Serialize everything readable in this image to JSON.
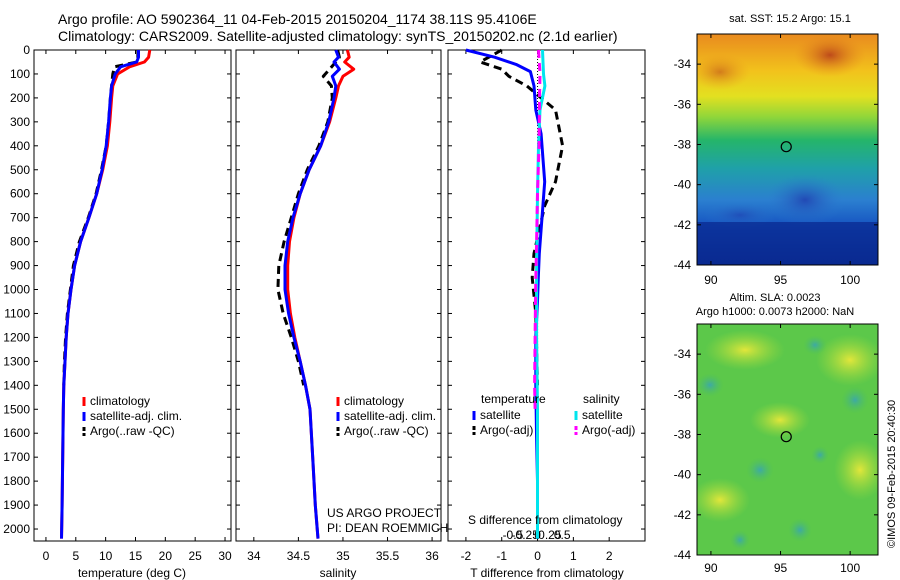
{
  "header": {
    "line1": "Argo profile: AO 5902364_11 04-Feb-2015 20150204_1174 38.11S 95.4106E",
    "line2": "Climatology: CARS2009. Satellite-adjusted climatology: synTS_20150202.nc (2.1d earlier)"
  },
  "colors": {
    "climatology": "#ff0000",
    "satellite": "#0000ff",
    "argo": "#000000",
    "satellite_s": "#00e5ee",
    "argo_s": "#ff00ff"
  },
  "chart_data": [
    {
      "type": "line",
      "name": "temperature-profile",
      "xlabel": "temperature (deg C)",
      "ylabel": "",
      "xlim": [
        -2,
        31
      ],
      "ylim": [
        2050,
        0
      ],
      "xticks": [
        "0",
        "5",
        "10",
        "15",
        "20",
        "25",
        "30"
      ],
      "yticks": [
        "0",
        "100",
        "200",
        "300",
        "400",
        "500",
        "600",
        "700",
        "800",
        "900",
        "1000",
        "1100",
        "1200",
        "1300",
        "1400",
        "1500",
        "1600",
        "1700",
        "1800",
        "1900",
        "2000"
      ],
      "legend": [
        "climatology",
        "satellite-adj. clim.",
        "Argo(..raw -QC)"
      ],
      "series": [
        {
          "name": "climatology",
          "style": "solid",
          "x": [
            17.4,
            17.2,
            16.5,
            14.0,
            12.0,
            11.2,
            11.0,
            10.7,
            10.3,
            9.5,
            8.5,
            7.2,
            5.8,
            4.8,
            4.2,
            3.7,
            3.4,
            3.2,
            3.0,
            2.9,
            2.8,
            2.7,
            2.6
          ],
          "y": [
            0,
            30,
            50,
            70,
            100,
            150,
            200,
            300,
            400,
            500,
            600,
            700,
            800,
            900,
            1000,
            1100,
            1200,
            1300,
            1400,
            1500,
            1700,
            1900,
            2040
          ]
        },
        {
          "name": "satellite-adj. clim.",
          "style": "solid",
          "x": [
            15.5,
            15.5,
            15.2,
            12.5,
            11.6,
            11.0,
            10.8,
            10.5,
            10.1,
            9.4,
            8.5,
            7.2,
            5.8,
            4.8,
            4.2,
            3.7,
            3.4,
            3.2,
            3.0,
            2.9,
            2.8,
            2.7,
            2.6
          ],
          "y": [
            0,
            30,
            50,
            70,
            100,
            150,
            200,
            300,
            400,
            500,
            600,
            700,
            800,
            900,
            1000,
            1100,
            1200,
            1300,
            1400,
            1500,
            1700,
            1900,
            2040
          ]
        },
        {
          "name": "Argo(..raw -QC)",
          "style": "dashed",
          "x": [
            15.4,
            15.4,
            15.2,
            11.5,
            11.2,
            11.0,
            10.8,
            10.5,
            10.1,
            9.3,
            8.4,
            7.1,
            5.6,
            4.6,
            4.1,
            3.6,
            3.3,
            3.1,
            3.0
          ],
          "y": [
            0,
            30,
            50,
            70,
            100,
            150,
            200,
            300,
            400,
            500,
            600,
            700,
            800,
            900,
            1000,
            1100,
            1200,
            1300,
            1400
          ]
        }
      ]
    },
    {
      "type": "line",
      "name": "salinity-profile",
      "xlabel": "salinity",
      "ylabel": "",
      "xlim": [
        33.8,
        36.1
      ],
      "ylim": [
        2050,
        0
      ],
      "xticks": [
        "34",
        "34.5",
        "35",
        "35.5",
        "36"
      ],
      "legend": [
        "climatology",
        "satellite-adj. clim.",
        "Argo(..raw -QC)"
      ],
      "annotation": [
        "US ARGO PROJECT",
        "PI: DEAN ROEMMICH"
      ],
      "series": [
        {
          "name": "climatology",
          "style": "solid",
          "x": [
            35.05,
            35.07,
            35.02,
            35.12,
            35.0,
            34.95,
            34.92,
            34.85,
            34.75,
            34.62,
            34.52,
            34.45,
            34.4,
            34.38,
            34.38,
            34.41,
            34.46,
            34.52,
            34.58,
            34.63,
            34.66,
            34.69,
            34.72
          ],
          "y": [
            0,
            30,
            50,
            80,
            110,
            150,
            200,
            300,
            400,
            500,
            600,
            700,
            800,
            900,
            1000,
            1100,
            1200,
            1300,
            1400,
            1500,
            1700,
            1900,
            2040
          ]
        },
        {
          "name": "satellite-adj. clim.",
          "style": "solid",
          "x": [
            34.92,
            34.95,
            34.9,
            34.96,
            34.88,
            34.92,
            34.9,
            34.84,
            34.75,
            34.62,
            34.52,
            34.44,
            34.38,
            34.35,
            34.35,
            34.39,
            34.45,
            34.52,
            34.58,
            34.63,
            34.66,
            34.69,
            34.72
          ],
          "y": [
            0,
            30,
            50,
            80,
            110,
            150,
            200,
            300,
            400,
            500,
            600,
            700,
            800,
            900,
            1000,
            1100,
            1200,
            1300,
            1400,
            1500,
            1700,
            1900,
            2040
          ]
        },
        {
          "name": "Argo(..raw -QC)",
          "style": "dashed",
          "x": [
            34.94,
            34.96,
            34.92,
            34.85,
            34.78,
            34.87,
            34.88,
            34.83,
            34.73,
            34.6,
            34.5,
            34.42,
            34.34,
            34.28,
            34.27,
            34.33,
            34.42,
            34.5,
            34.56
          ],
          "y": [
            0,
            30,
            50,
            80,
            110,
            150,
            200,
            300,
            400,
            500,
            600,
            700,
            800,
            900,
            1000,
            1100,
            1200,
            1300,
            1400
          ]
        }
      ]
    },
    {
      "type": "line",
      "name": "difference-profile",
      "xlabel": "T difference from climatology",
      "top_label": "S difference from climatology",
      "xlim": [
        -2.5,
        3.0
      ],
      "ylim": [
        2050,
        0
      ],
      "xticks": [
        "-2",
        "-1",
        "0",
        "1",
        "2"
      ],
      "sticks": [
        "-0.5",
        "-0.25",
        "0",
        "0.25",
        "0.5"
      ],
      "legend_t_title": "temperature",
      "legend_s_title": "salinity",
      "legend_t": [
        "satellite",
        "Argo(-adj)"
      ],
      "legend_s": [
        "satellite",
        "Argo(-adj)"
      ],
      "series": [
        {
          "name": "T satellite",
          "style": "solid",
          "x": [
            -2.0,
            -1.2,
            -0.6,
            -0.2,
            -0.1,
            -0.05,
            0.1,
            0.15,
            0.2,
            0.15,
            0.1,
            0.05,
            0.02,
            0.0,
            -0.05,
            -0.05,
            -0.03,
            0.0,
            0.0
          ],
          "y": [
            0,
            30,
            60,
            90,
            150,
            250,
            350,
            450,
            550,
            650,
            750,
            850,
            950,
            1050,
            1200,
            1400,
            1600,
            1800,
            2040
          ]
        },
        {
          "name": "T Argo(-adj)",
          "style": "dashed",
          "x": [
            -1.0,
            -1.6,
            -1.0,
            -0.8,
            -0.3,
            0.5,
            0.7,
            0.5,
            0.2,
            0.05,
            -0.1,
            -0.15,
            -0.05,
            0.0
          ],
          "y": [
            0,
            50,
            80,
            110,
            150,
            250,
            400,
            550,
            650,
            750,
            850,
            950,
            1100,
            1400
          ]
        },
        {
          "name": "S satellite",
          "style": "solid",
          "x": [
            0.1,
            0.12,
            0.15,
            0.05,
            0.02,
            0.0,
            -0.02,
            -0.02,
            0.0,
            0.0,
            0.0
          ],
          "y": [
            0,
            100,
            150,
            250,
            400,
            600,
            900,
            1200,
            1500,
            1800,
            2040
          ]
        },
        {
          "name": "S Argo(-adj)",
          "style": "dashed",
          "x": [
            0.02,
            0.05,
            0.04,
            0.03,
            0.0,
            -0.02,
            -0.04,
            -0.05,
            -0.06,
            -0.05
          ],
          "y": [
            0,
            100,
            200,
            400,
            600,
            800,
            1000,
            1200,
            1400,
            1500
          ]
        }
      ]
    },
    {
      "type": "heatmap",
      "name": "sst-map",
      "title": "sat. SST: 15.2  Argo: 15.1",
      "xlim": [
        89,
        102
      ],
      "ylim": [
        -44,
        -32.5
      ],
      "xticks": [
        "90",
        "95",
        "100"
      ],
      "yticks": [
        "-34",
        "-36",
        "-38",
        "-40",
        "-42",
        "-44"
      ],
      "marker": {
        "lon": 95.41,
        "lat": -38.11
      }
    },
    {
      "type": "heatmap",
      "name": "sla-map",
      "title": "Altim. SLA: 0.0023",
      "subtitle": "Argo h1000: 0.0073 h2000: NaN",
      "xlim": [
        89,
        102
      ],
      "ylim": [
        -44,
        -32.5
      ],
      "xticks": [
        "90",
        "95",
        "100"
      ],
      "yticks": [
        "-34",
        "-36",
        "-38",
        "-40",
        "-42",
        "-44"
      ],
      "marker": {
        "lon": 95.41,
        "lat": -38.11
      }
    }
  ],
  "credit": "©IMOS 09-Feb-2015 20:40:30"
}
